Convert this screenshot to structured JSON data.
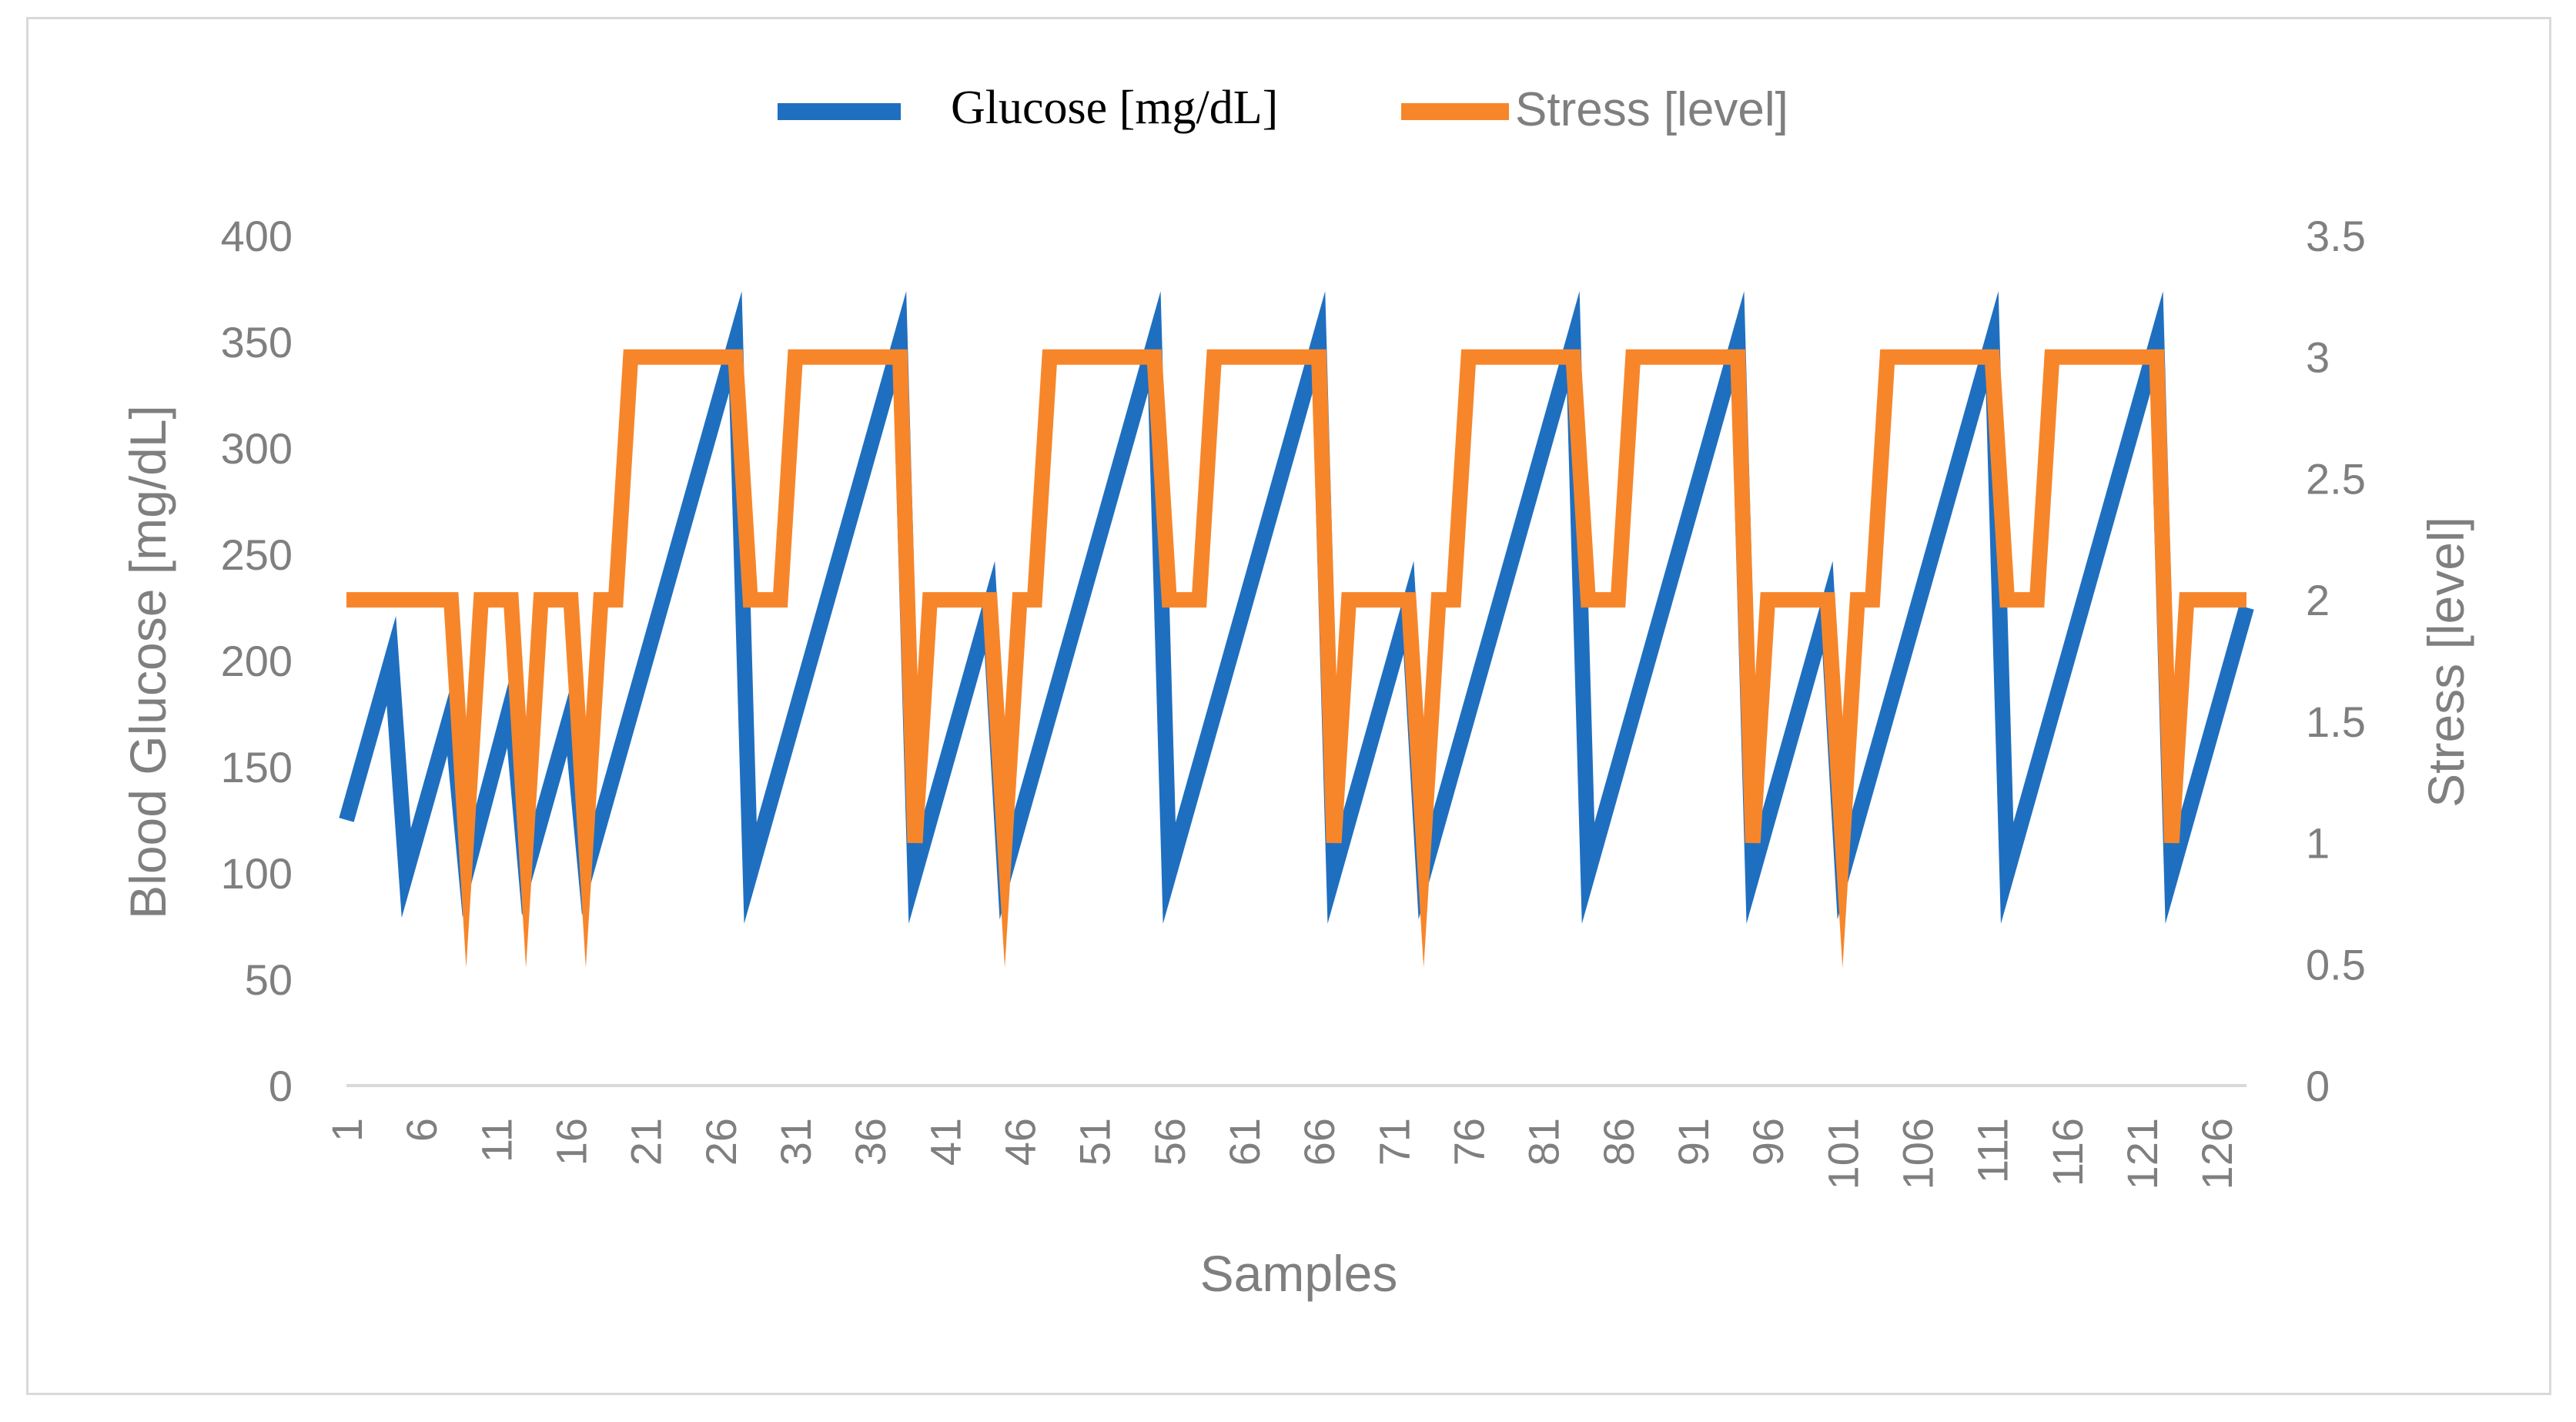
{
  "chart_data": {
    "type": "line",
    "title": "",
    "xlabel": "Samples",
    "y_left_label": "Blood Glucose [mg/dL]",
    "y_right_label": "Stress [level]",
    "y_left_lim": [
      0,
      400
    ],
    "y_right_lim": [
      0,
      3.5
    ],
    "y_left_ticks": [
      "0",
      "50",
      "100",
      "150",
      "200",
      "250",
      "300",
      "350",
      "400"
    ],
    "y_right_ticks": [
      "0",
      "0.5",
      "1",
      "1.5",
      "2",
      "2.5",
      "3",
      "3.5"
    ],
    "x_ticks": [
      "1",
      "6",
      "11",
      "16",
      "21",
      "26",
      "31",
      "36",
      "41",
      "46",
      "51",
      "56",
      "61",
      "66",
      "71",
      "76",
      "81",
      "86",
      "91",
      "96",
      "101",
      "106",
      "111",
      "116",
      "121",
      "126"
    ],
    "x_range": [
      1,
      128
    ],
    "grid": false,
    "legend_position": "top",
    "series": [
      {
        "name": "Glucose [mg/dL]",
        "axis": "left",
        "color": "#1f6fc0",
        "points": [
          [
            1,
            125
          ],
          [
            4,
            200
          ],
          [
            5,
            100
          ],
          [
            8,
            175
          ],
          [
            9,
            100
          ],
          [
            12,
            180
          ],
          [
            13,
            100
          ],
          [
            16,
            175
          ],
          [
            17,
            100
          ],
          [
            27,
            350
          ],
          [
            28,
            100
          ],
          [
            38,
            350
          ],
          [
            39,
            100
          ],
          [
            44,
            225
          ],
          [
            45,
            100
          ],
          [
            55,
            350
          ],
          [
            56,
            100
          ],
          [
            66,
            350
          ],
          [
            67,
            100
          ],
          [
            72,
            225
          ],
          [
            73,
            100
          ],
          [
            83,
            350
          ],
          [
            84,
            100
          ],
          [
            94,
            350
          ],
          [
            95,
            100
          ],
          [
            100,
            225
          ],
          [
            101,
            100
          ],
          [
            111,
            350
          ],
          [
            112,
            100
          ],
          [
            122,
            350
          ],
          [
            123,
            100
          ],
          [
            128,
            225
          ]
        ]
      },
      {
        "name": "Stress [level]",
        "axis": "right",
        "color": "#f7862a",
        "points": [
          [
            1,
            2
          ],
          [
            8,
            2
          ],
          [
            9,
            1
          ],
          [
            10,
            2
          ],
          [
            12,
            2
          ],
          [
            13,
            1
          ],
          [
            14,
            2
          ],
          [
            16,
            2
          ],
          [
            17,
            1
          ],
          [
            18,
            2
          ],
          [
            19,
            2
          ],
          [
            20,
            3
          ],
          [
            27,
            3
          ],
          [
            28,
            2
          ],
          [
            30,
            2
          ],
          [
            31,
            3
          ],
          [
            38,
            3
          ],
          [
            39,
            1
          ],
          [
            40,
            2
          ],
          [
            44,
            2
          ],
          [
            45,
            1
          ],
          [
            46,
            2
          ],
          [
            47,
            2
          ],
          [
            48,
            3
          ],
          [
            55,
            3
          ],
          [
            56,
            2
          ],
          [
            58,
            2
          ],
          [
            59,
            3
          ],
          [
            66,
            3
          ],
          [
            67,
            1
          ],
          [
            68,
            2
          ],
          [
            72,
            2
          ],
          [
            73,
            1
          ],
          [
            74,
            2
          ],
          [
            75,
            2
          ],
          [
            76,
            3
          ],
          [
            83,
            3
          ],
          [
            84,
            2
          ],
          [
            86,
            2
          ],
          [
            87,
            3
          ],
          [
            94,
            3
          ],
          [
            95,
            1
          ],
          [
            96,
            2
          ],
          [
            100,
            2
          ],
          [
            101,
            1
          ],
          [
            102,
            2
          ],
          [
            103,
            2
          ],
          [
            104,
            3
          ],
          [
            111,
            3
          ],
          [
            112,
            2
          ],
          [
            114,
            2
          ],
          [
            115,
            3
          ],
          [
            122,
            3
          ],
          [
            123,
            1
          ],
          [
            124,
            2
          ],
          [
            128,
            2
          ]
        ]
      }
    ]
  }
}
